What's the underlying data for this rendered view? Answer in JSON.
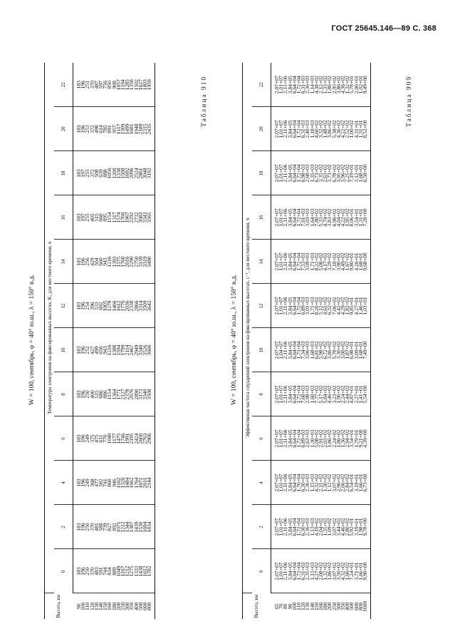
{
  "header": {
    "text": "ГОСТ 25645.146—89 С. 368"
  },
  "tables": [
    {
      "number": "Таблица 909",
      "subtitle": "W = 100, сентябрь, φ = 40° ю.ш., λ = 150° в.д.",
      "caption": "Температура электронов на фиксированных высотах, K, для местного времени, ч",
      "alt_header": "Высота, км",
      "hours": [
        "0",
        "2",
        "4",
        "6",
        "8",
        "10",
        "12",
        "14",
        "16",
        "18",
        "20",
        "22"
      ],
      "rows": [
        [
          "90",
          "183",
          "183",
          "183",
          "183",
          "183",
          "183",
          "183",
          "183",
          "183",
          "183",
          "183",
          "183"
        ],
        [
          "100",
          "196",
          "196",
          "196",
          "196",
          "196",
          "196",
          "196",
          "196",
          "197",
          "197",
          "196",
          "196"
        ],
        [
          "110",
          "250",
          "250",
          "249",
          "249",
          "250",
          "252",
          "254",
          "256",
          "255",
          "255",
          "253",
          "251"
        ],
        [
          "120",
          "370",
          "370",
          "368",
          "375",
          "400",
          "427",
          "396",
          "429",
          "405",
          "372",
          "372",
          "370"
        ],
        [
          "130",
          "483",
          "481",
          "477",
          "475",
          "515",
          "499",
          "533",
          "504",
          "515",
          "508",
          "498",
          "487"
        ],
        [
          "140",
          "591",
          "588",
          "582",
          "611",
          "680",
          "656",
          "692",
          "660",
          "660",
          "639",
          "614",
          "597"
        ],
        [
          "150",
          "744",
          "739",
          "741",
          "770",
          "886",
          "943",
          "1005",
          "943",
          "895",
          "888",
          "785",
          "756"
        ],
        [
          "160",
          "834",
          "827",
          "860",
          "1040",
          "1154",
          "1216",
          "1278",
          "1216",
          "1154",
          "1056",
          "891",
          "850"
        ],
        [
          "180",
          "889",
          "892",
          "946",
          "1177",
          "1364",
          "1388",
          "1466",
          "1393",
          "1317",
          "1200",
          "957",
          "908"
        ],
        [
          "200",
          "1049",
          "1071",
          "1162",
          "1475",
          "1771",
          "1594",
          "1612",
          "1575",
          "1574",
          "1338",
          "1117",
          "1057"
        ],
        [
          "250",
          "1167",
          "1212",
          "1320",
          "1746",
          "2127",
          "1799",
          "1770",
          "1760",
          "1700",
          "1508",
          "1309",
          "1194"
        ],
        [
          "300",
          "1212",
          "1344",
          "1484",
          "1991",
          "2378",
          "2114",
          "2036",
          "2016",
          "1967",
          "1692",
          "1499",
          "1285"
        ],
        [
          "350",
          "1275",
          "1387",
          "1662",
          "2195",
          "2676",
          "2467",
          "2338",
          "2290",
          "2292",
          "2096",
          "1681",
          "1358"
        ],
        [
          "400",
          "1333",
          "1439",
          "1764",
          "2424",
          "2890",
          "2949",
          "2866",
          "2750",
          "2732",
          "2524",
          "1948",
          "1502"
        ],
        [
          "500",
          "1438",
          "1530",
          "1871",
          "2600",
          "3173",
          "3340",
          "3314",
          "3139",
          "3083",
          "2861",
          "2189",
          "1627"
        ],
        [
          "600",
          "1612",
          "1694",
          "2011",
          "2763",
          "3340",
          "3526",
          "3509",
          "3319",
          "3343",
          "3048",
          "2315",
          "1803"
        ],
        [
          "800",
          "1782",
          "1834",
          "2144",
          "2906",
          "3508",
          "3660",
          "3642",
          "3490",
          "3565",
          "3192",
          "2435",
          "1959"
        ]
      ]
    },
    {
      "number": "Таблица 910",
      "subtitle": "W = 100, сентябрь, φ = 40° ю.ш., λ = 150° в.д.",
      "caption": "Эффективная частота соударений электронов на фиксированных высотах, с⁻¹, для местного времени, ч",
      "alt_header": "Высота, км",
      "hours": [
        "0",
        "2",
        "4",
        "6",
        "8",
        "10",
        "12",
        "14",
        "16",
        "18",
        "20",
        "22"
      ],
      "rows": [
        [
          "65",
          "2,07+07",
          "2,07+07",
          "2,07+07",
          "2,07+07",
          "2,07+07",
          "2,07+07",
          "2,07+07",
          "2,07+07",
          "2,07+07",
          "2,07+07",
          "2,07+07",
          "2,07+07"
        ],
        [
          "70",
          "1,01+07",
          "1,01+07",
          "1,01+07",
          "1,01+07",
          "1,01+07",
          "1,04+07",
          "1,01+07",
          "1,01+07",
          "1,01+07",
          "1,01+07",
          "1,01+07",
          "1,01+07"
        ],
        [
          "80",
          "2,11+06",
          "2,11+06",
          "2,11+06",
          "2,11+06",
          "2,11+06",
          "2,11+06",
          "2,11+06",
          "2,11+06",
          "2,11+06",
          "2,11+06",
          "2,11+06",
          "2,11+06"
        ],
        [
          "90",
          "3,84+05",
          "3,84+05",
          "3,84+05",
          "3,84+05",
          "3,84+05",
          "3,84+05",
          "3,84+05",
          "3,84+05",
          "3,84+05",
          "3,84+05",
          "3,84+05",
          "3,84+05"
        ],
        [
          "100",
          "6,64+04",
          "6,64+04",
          "6,64+04",
          "6,64+04",
          "6,64+04",
          "6,64+04",
          "6,64+04",
          "6,64+04",
          "6,64+04",
          "6,64+04",
          "6,64+04",
          "6,64+04"
        ],
        [
          "110",
          "1,72+04",
          "1,72+04",
          "1,70+04",
          "1,72+04",
          "1,72+04",
          "1,73+04",
          "1,72+04",
          "1,72+04",
          "1,72+04",
          "1,72+04",
          "1,72+04",
          "1,72+04"
        ],
        [
          "120",
          "6,31+03",
          "6,30+03",
          "6,30+03",
          "6,89+03",
          "7,68+03",
          "7,34+03",
          "6,89+03",
          "7,53+03",
          "7,01+03",
          "6,98+03",
          "6,31+03",
          "6,31+03"
        ],
        [
          "130",
          "2,35+03",
          "2,36+03",
          "2,36+03",
          "2,63+03",
          "2,98+03",
          "3,06+03",
          "3,01+03",
          "3,09+03",
          "3,03+03",
          "2,68+03",
          "2,40+03",
          "2,36+03"
        ],
        [
          "140",
          "1,13+03",
          "1,13+03",
          "1,15+03",
          "1,30+03",
          "1,60+03",
          "1,68+03",
          "1,71+03",
          "1,71+03",
          "1,64+03",
          "1,35+03",
          "1,18+03",
          "1,14+03"
        ],
        [
          "150",
          "4,27+02",
          "4,19+02",
          "4,32+02",
          "5,08+02",
          "7,77+02",
          "6,81+02",
          "8,20+02",
          "8,22+02",
          "7,80+02",
          "6,73+02",
          "4,60+02",
          "4,38+02"
        ],
        [
          "160",
          "2,08+02",
          "2,04+02",
          "2,11+02",
          "2,91+02",
          "5,17+02",
          "5,98+02",
          "5,12+02",
          "5,08+02",
          "5,33+02",
          "3,35+02",
          "3,32+02",
          "2,12+02"
        ],
        [
          "180",
          "1,32+02",
          "1,35+02",
          "1,30+02",
          "2,03+02",
          "5,84+02",
          "6,72+02",
          "4,61+02",
          "4,17+02",
          "4,74+02",
          "2,63+02",
          "1,48+02",
          "1,33+02"
        ],
        [
          "200",
          "1,86+02",
          "1,09+02",
          "1,12+02",
          "1,86+02",
          "4,46+02",
          "3,86+02",
          "6,32+02",
          "3,29+02",
          "3,83+02",
          "3,73+02",
          "3,86+02",
          "1,86+02"
        ],
        [
          "250",
          "3,07+02",
          "3,07+02",
          "3,07+02",
          "2,24+02",
          "3,23+02",
          "5,78+02",
          "7,06+02",
          "7,18+02",
          "6,96+02",
          "6,78+02",
          "5,38+02",
          "2,95+02"
        ],
        [
          "300",
          "3,50+02",
          "3,44+02",
          "2,96+02",
          "1,86+02",
          "1,90+02",
          "3,30+02",
          "4,42+02",
          "3,90+02",
          "4,04+02",
          "3,95+02",
          "4,36+02",
          "3,86+02"
        ],
        [
          "350",
          "4,32+02",
          "4,46+02",
          "2,06+02",
          "1,36+02",
          "2,24+02",
          "3,00+02",
          "4,29+02",
          "4,49+02",
          "4,22+02",
          "3,96+02",
          "4,22+02",
          "4,36+02"
        ],
        [
          "400",
          "1,66+02",
          "2,80+02",
          "2,84+02",
          "2,94+02",
          "2,44+02",
          "1,87+02",
          "1,82+02",
          "1,67+02",
          "1,95+02",
          "2,25+02",
          "2,52+02",
          "1,32+02"
        ],
        [
          "500",
          "7,24+01",
          "5,92+01",
          "6,54+01",
          "3,54+01",
          "4,87+01",
          "6,98+01",
          "9,85+01",
          "9,80+01",
          "8,06+01",
          "7,19+01",
          "1,00+02",
          "5,78+01"
        ],
        [
          "600",
          "3,71+01",
          "3,19+01",
          "3,19+01",
          "1,79+01",
          "2,27+01",
          "3,09+01",
          "4,27+01",
          "4,26+01",
          "3,54+01",
          "3,12+01",
          "4,31+01",
          "2,00+01"
        ],
        [
          "800",
          "1,66+01",
          "1,98+01",
          "1,66+01",
          "9,21+00",
          "1,41+01",
          "1,68+01",
          "1,46+01",
          "1,68+01",
          "1,31+01",
          "1,68+01",
          "1,31+01",
          "1,02+01"
        ],
        [
          "1000",
          "9,90+00",
          "9,78+00",
          "6,73+00",
          "4,39+00",
          "5,54+00",
          "7,49+00",
          "1,03+01",
          "9,68+00",
          "7,28+00",
          "6,58+00",
          "8,52+00",
          "9,49+00"
        ]
      ]
    }
  ]
}
